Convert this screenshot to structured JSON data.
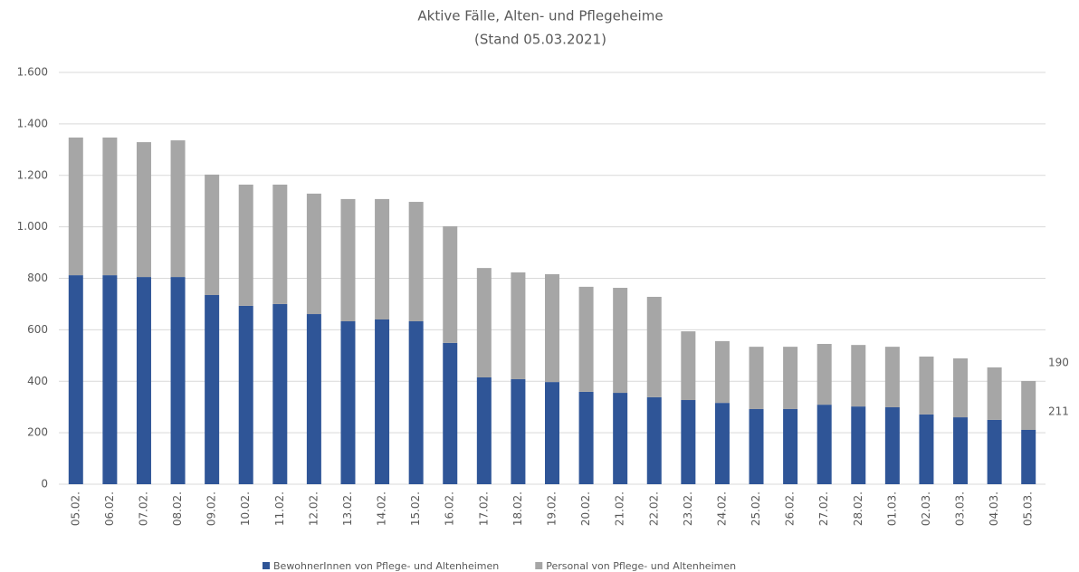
{
  "chart_data": {
    "type": "stacked_bar",
    "title": "Aktive Fälle, Alten- und Pflegeheime",
    "subtitle": "(Stand 05.03.2021)",
    "categories": [
      "05.02.",
      "06.02.",
      "07.02.",
      "08.02.",
      "09.02.",
      "10.02.",
      "11.02.",
      "12.02.",
      "13.02.",
      "14.02.",
      "15.02.",
      "16.02.",
      "17.02.",
      "18.02.",
      "19.02.",
      "20.02.",
      "21.02.",
      "22.02.",
      "23.02.",
      "24.02.",
      "25.02.",
      "26.02.",
      "27.02.",
      "28.02.",
      "01.03.",
      "02.03.",
      "03.03.",
      "04.03.",
      "05.03."
    ],
    "series": [
      {
        "name": "BewohnerInnen von Pflege- und Altenheimen",
        "color": "#2f5597",
        "values": [
          812,
          812,
          805,
          805,
          735,
          693,
          700,
          661,
          633,
          640,
          633,
          549,
          415,
          408,
          397,
          359,
          355,
          338,
          327,
          316,
          292,
          292,
          309,
          302,
          299,
          271,
          260,
          250,
          211
        ]
      },
      {
        "name": "Personal von Pflege- und Altenheimen",
        "color": "#a6a6a6",
        "values": [
          535,
          535,
          524,
          531,
          468,
          471,
          464,
          468,
          475,
          468,
          464,
          453,
          425,
          415,
          419,
          408,
          408,
          390,
          267,
          240,
          242,
          242,
          236,
          239,
          235,
          225,
          229,
          204,
          190
        ]
      }
    ],
    "ylim": [
      0,
      1600
    ],
    "yticks": [
      0,
      200,
      400,
      600,
      800,
      {
        "value": 1000,
        "label": "1.000"
      },
      {
        "value": 1200,
        "label": "1.200"
      },
      {
        "value": 1400,
        "label": "1.400"
      },
      {
        "value": 1600,
        "label": "1.600"
      }
    ],
    "grid": true,
    "legend": "bottom"
  }
}
